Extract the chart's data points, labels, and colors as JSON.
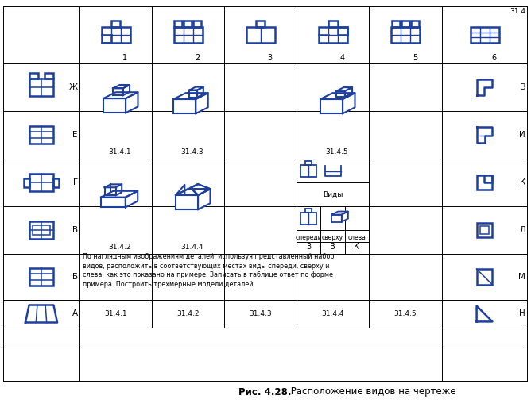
{
  "blue": "#1c3fa0",
  "black": "#000000",
  "white": "#ffffff",
  "fig_width": 6.68,
  "fig_height": 5.08,
  "dpi": 100,
  "caption_bold": "Рис. 4.28.",
  "caption_normal": " Расположение видов на чертеже",
  "instruction": "По наглядным изображениям деталей, используя представленный набор\nвидов, расположить в соответствующих местах виды спереди, сверху и\nслева, как это показано на примере. Записать в таблице ответ по форме\nпримера. Построить трехмерные модели деталей",
  "corner_label": "31.4",
  "top_numbers": [
    "1",
    "2",
    "3",
    "4",
    "5",
    "6"
  ],
  "row_labels_left": [
    "Ж",
    "Е",
    "Г",
    "В",
    "Б",
    "А"
  ],
  "row_labels_right": [
    "З",
    "И",
    "К",
    "Л",
    "М",
    "Н"
  ],
  "view_title": "Виды",
  "view_headers": [
    "спереди",
    "сверху",
    "слева"
  ],
  "view_values": [
    "3",
    "В",
    "К"
  ],
  "bottom_labels": [
    "31.4.1",
    "31.4.2",
    "31.4.3",
    "31.4.4",
    "31.4.5"
  ],
  "iso_labels": [
    "31.4.1",
    "31.4.2",
    "31.4.3",
    "31.4.4",
    "31.4.5"
  ]
}
